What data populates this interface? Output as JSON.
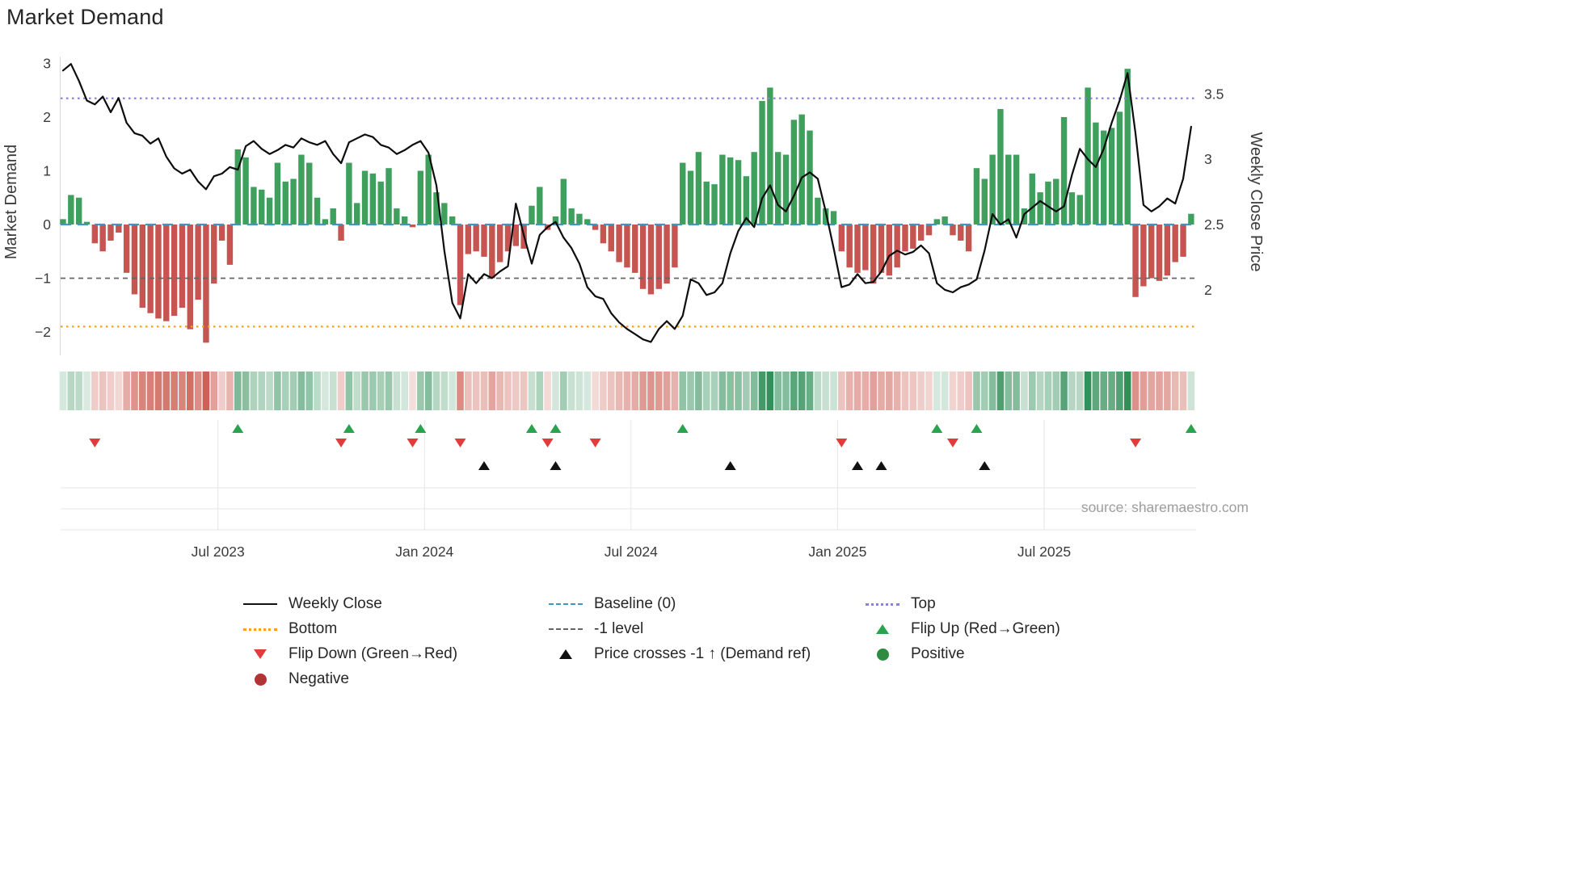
{
  "page": {
    "title": "Market Demand",
    "source": "source: sharemaestro.com"
  },
  "axes": {
    "left_label": "Market Demand",
    "right_label": "Weekly Close Price",
    "left_ticks": [
      {
        "label": "3",
        "value": 3
      },
      {
        "label": "2",
        "value": 2
      },
      {
        "label": "1",
        "value": 1
      },
      {
        "label": "0",
        "value": 0
      },
      {
        "label": "−1",
        "value": -1
      },
      {
        "label": "−2",
        "value": -2
      }
    ],
    "right_ticks": [
      {
        "label": "3.5",
        "value": 3.5
      },
      {
        "label": "3",
        "value": 3
      },
      {
        "label": "2.5",
        "value": 2.5
      },
      {
        "label": "2",
        "value": 2
      }
    ],
    "x_ticks": [
      {
        "label": "Jul 2023",
        "index": 19.5
      },
      {
        "label": "Jan 2024",
        "index": 45.5
      },
      {
        "label": "Jul 2024",
        "index": 71.5
      },
      {
        "label": "Jan 2025",
        "index": 97.5
      },
      {
        "label": "Jul 2025",
        "index": 123.5
      }
    ]
  },
  "chart_data": {
    "type": "combo",
    "title": "Market Demand",
    "n_points": 143,
    "x_axis": "weekly, Feb 2023 - Nov 2025 (ticks: Jul 2023, Jan 2024, Jul 2024, Jan 2025, Jul 2025)",
    "ylim_left": [
      -2.45,
      3.12
    ],
    "ylim_right": [
      1.5,
      3.79
    ],
    "ylabel_left": "Market Demand",
    "ylabel_right": "Weekly Close Price",
    "price_scale": {
      "origin": 2.5,
      "demand_per_unit": 2.43
    },
    "series": [
      {
        "name": "Market Demand",
        "type": "bar",
        "axis": "left",
        "values": [
          0.1,
          0.55,
          0.5,
          0.05,
          -0.35,
          -0.5,
          -0.3,
          -0.15,
          -0.9,
          -1.3,
          -1.55,
          -1.65,
          -1.75,
          -1.8,
          -1.7,
          -1.55,
          -1.95,
          -1.4,
          -2.2,
          -1.1,
          -0.3,
          -0.75,
          1.4,
          1.25,
          0.7,
          0.65,
          0.5,
          1.15,
          0.8,
          0.85,
          1.3,
          1.15,
          0.5,
          0.1,
          0.3,
          -0.3,
          1.15,
          0.4,
          1.0,
          0.95,
          0.8,
          1.05,
          0.3,
          0.15,
          -0.05,
          1.0,
          1.3,
          0.6,
          0.4,
          0.15,
          -1.5,
          -0.55,
          -0.5,
          -0.6,
          -1.0,
          -0.7,
          -0.5,
          -0.4,
          -0.45,
          0.35,
          0.7,
          -0.1,
          0.15,
          0.85,
          0.3,
          0.2,
          0.1,
          -0.1,
          -0.35,
          -0.5,
          -0.7,
          -0.8,
          -0.9,
          -1.2,
          -1.3,
          -1.2,
          -1.1,
          -0.8,
          1.15,
          1.0,
          1.35,
          0.8,
          0.75,
          1.3,
          1.25,
          1.2,
          0.9,
          1.35,
          2.3,
          2.55,
          1.35,
          1.3,
          1.95,
          2.05,
          1.75,
          0.5,
          0.3,
          0.25,
          -0.5,
          -0.8,
          -0.9,
          -0.85,
          -1.1,
          -0.9,
          -0.95,
          -0.8,
          -0.5,
          -0.45,
          -0.3,
          -0.2,
          0.1,
          0.15,
          -0.2,
          -0.3,
          -0.5,
          1.05,
          0.85,
          1.3,
          2.15,
          1.3,
          1.3,
          0.3,
          0.95,
          0.6,
          0.8,
          0.85,
          2.0,
          0.6,
          0.55,
          2.55,
          1.9,
          1.75,
          1.8,
          2.1,
          2.9,
          -1.35,
          -1.15,
          -1.0,
          -1.05,
          -0.95,
          -0.7,
          -0.6,
          0.2
        ]
      },
      {
        "name": "Weekly Close",
        "type": "line",
        "axis": "right",
        "values": [
          3.68,
          3.73,
          3.6,
          3.45,
          3.42,
          3.48,
          3.36,
          3.47,
          3.28,
          3.2,
          3.18,
          3.12,
          3.16,
          3.02,
          2.93,
          2.89,
          2.92,
          2.83,
          2.77,
          2.87,
          2.89,
          2.94,
          2.92,
          3.1,
          3.14,
          3.08,
          3.04,
          3.07,
          3.11,
          3.09,
          3.16,
          3.13,
          3.11,
          3.14,
          3.04,
          2.97,
          3.13,
          3.16,
          3.19,
          3.17,
          3.11,
          3.09,
          3.04,
          3.07,
          3.11,
          3.14,
          3.05,
          2.8,
          2.3,
          1.9,
          1.78,
          2.12,
          2.05,
          2.12,
          2.09,
          2.14,
          2.18,
          2.66,
          2.42,
          2.2,
          2.42,
          2.48,
          2.52,
          2.4,
          2.32,
          2.2,
          2.02,
          1.95,
          1.93,
          1.82,
          1.75,
          1.7,
          1.66,
          1.62,
          1.6,
          1.7,
          1.76,
          1.7,
          1.8,
          2.08,
          2.05,
          1.96,
          1.98,
          2.05,
          2.28,
          2.45,
          2.55,
          2.48,
          2.7,
          2.8,
          2.65,
          2.6,
          2.72,
          2.86,
          2.9,
          2.85,
          2.6,
          2.32,
          2.02,
          2.04,
          2.12,
          2.05,
          2.06,
          2.14,
          2.26,
          2.3,
          2.27,
          2.29,
          2.34,
          2.28,
          2.05,
          2.0,
          1.98,
          2.02,
          2.04,
          2.08,
          2.3,
          2.58,
          2.5,
          2.54,
          2.4,
          2.58,
          2.63,
          2.68,
          2.64,
          2.6,
          2.64,
          2.88,
          3.08,
          3.0,
          2.94,
          3.08,
          3.28,
          3.45,
          3.66,
          3.2,
          2.65,
          2.6,
          2.64,
          2.7,
          2.66,
          2.85,
          3.25
        ]
      }
    ],
    "reference_lines": [
      {
        "name": "Top",
        "value": 2.35,
        "style": "dotted",
        "color": "#8b80dd"
      },
      {
        "name": "Baseline (0)",
        "value": 0,
        "style": "dashed",
        "color": "#4393c3"
      },
      {
        "name": "-1 level",
        "value": -1,
        "style": "dashed",
        "color": "#666666"
      },
      {
        "name": "Bottom",
        "value": -1.9,
        "style": "dotted",
        "color": "#f6a21c"
      }
    ],
    "markers": {
      "flip_up_indices": [
        22,
        36,
        45,
        59,
        62,
        78,
        110,
        115,
        142
      ],
      "flip_down_indices": [
        4,
        35,
        44,
        50,
        61,
        67,
        98,
        112,
        135
      ],
      "price_cross_indices": [
        53,
        62,
        84,
        100,
        103,
        116
      ]
    },
    "heat_strip": "cell color = sign and magnitude of Market Demand bar for the same week",
    "colors": {
      "positive_bar": "#3fa05e",
      "negative_bar": "#c65450",
      "price_line": "#0d0d0d",
      "flip_up": "#2aa34f",
      "flip_down": "#e23b3b",
      "price_cross": "#111111",
      "heat_positive": "#1e8449",
      "heat_negative": "#c0392b"
    }
  },
  "legend": {
    "items": [
      {
        "label": "Weekly Close",
        "swatch": "line-solid",
        "color": "#111111"
      },
      {
        "label": "Baseline (0)",
        "swatch": "line-dashed",
        "color": "#4393c3"
      },
      {
        "label": "Top",
        "swatch": "line-dotted",
        "color": "#8b80dd"
      },
      {
        "label": "Bottom",
        "swatch": "line-dotted",
        "color": "#f6a21c"
      },
      {
        "label": "-1 level",
        "swatch": "line-dashed-fine",
        "color": "#666666"
      },
      {
        "label": "Flip Up (Red→Green)",
        "swatch": "triangle-up",
        "color": "#2aa34f"
      },
      {
        "label": "Flip Down (Green→Red)",
        "swatch": "triangle-down",
        "color": "#e23b3b"
      },
      {
        "label": "Price crosses -1 ↑ (Demand ref)",
        "swatch": "triangle-up",
        "color": "#111111"
      },
      {
        "label": "Positive",
        "swatch": "circle",
        "color": "#2e8b42"
      },
      {
        "label": "Negative",
        "swatch": "circle",
        "color": "#b23434"
      }
    ]
  }
}
